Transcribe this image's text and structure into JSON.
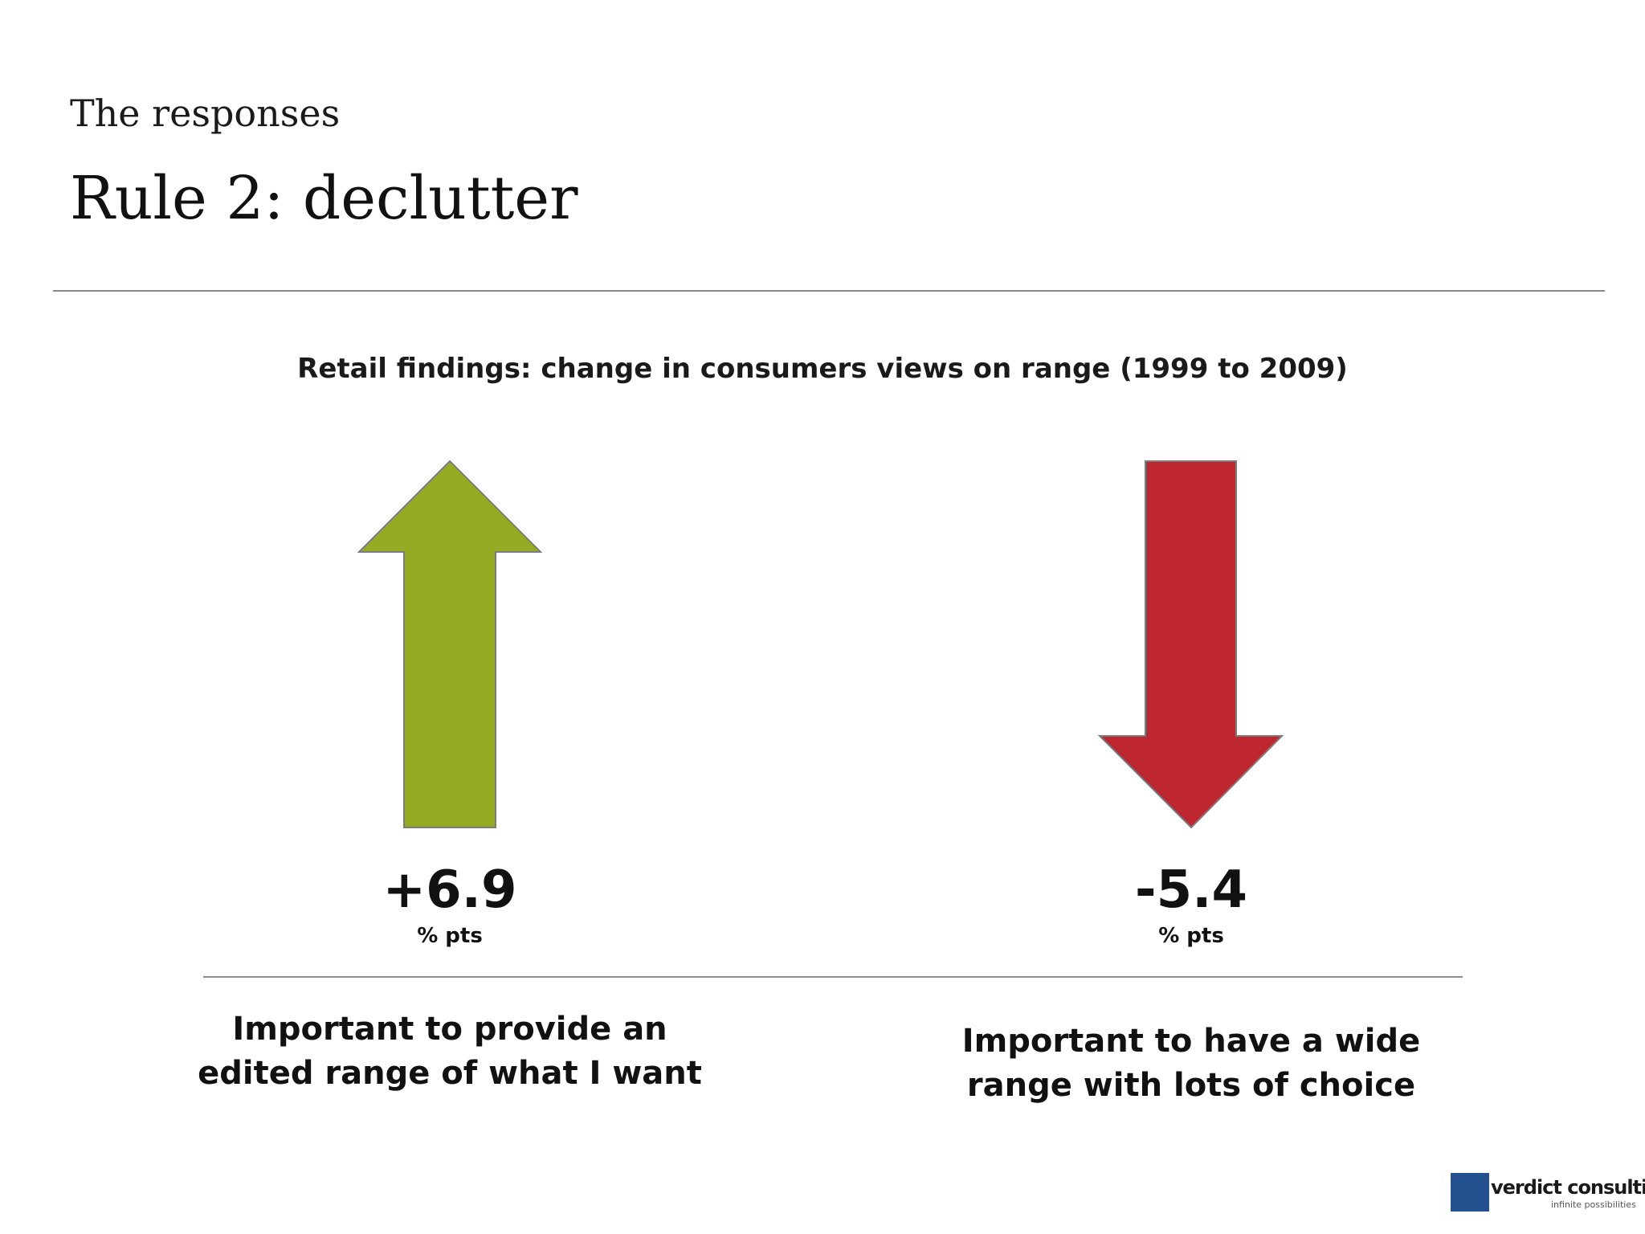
{
  "slide": {
    "subtitle": "The responses",
    "title": "Rule 2: declutter"
  },
  "diagram": {
    "title": "Retail findings: change in consumers views on range (1999 to 2009)",
    "items": [
      {
        "direction": "up",
        "value": "+6.9",
        "unit": "% pts",
        "label_line1": "Important to provide an",
        "label_line2": "edited range of what I want",
        "color": "#95ab23"
      },
      {
        "direction": "down",
        "value": "-5.4",
        "unit": "% pts",
        "label_line1": "Important to have a wide",
        "label_line2": "range with lots of choice",
        "color": "#be272f"
      }
    ]
  },
  "logo": {
    "name": "verdict consulting",
    "tagline": "infinite possibilities",
    "color": "#24518f"
  }
}
